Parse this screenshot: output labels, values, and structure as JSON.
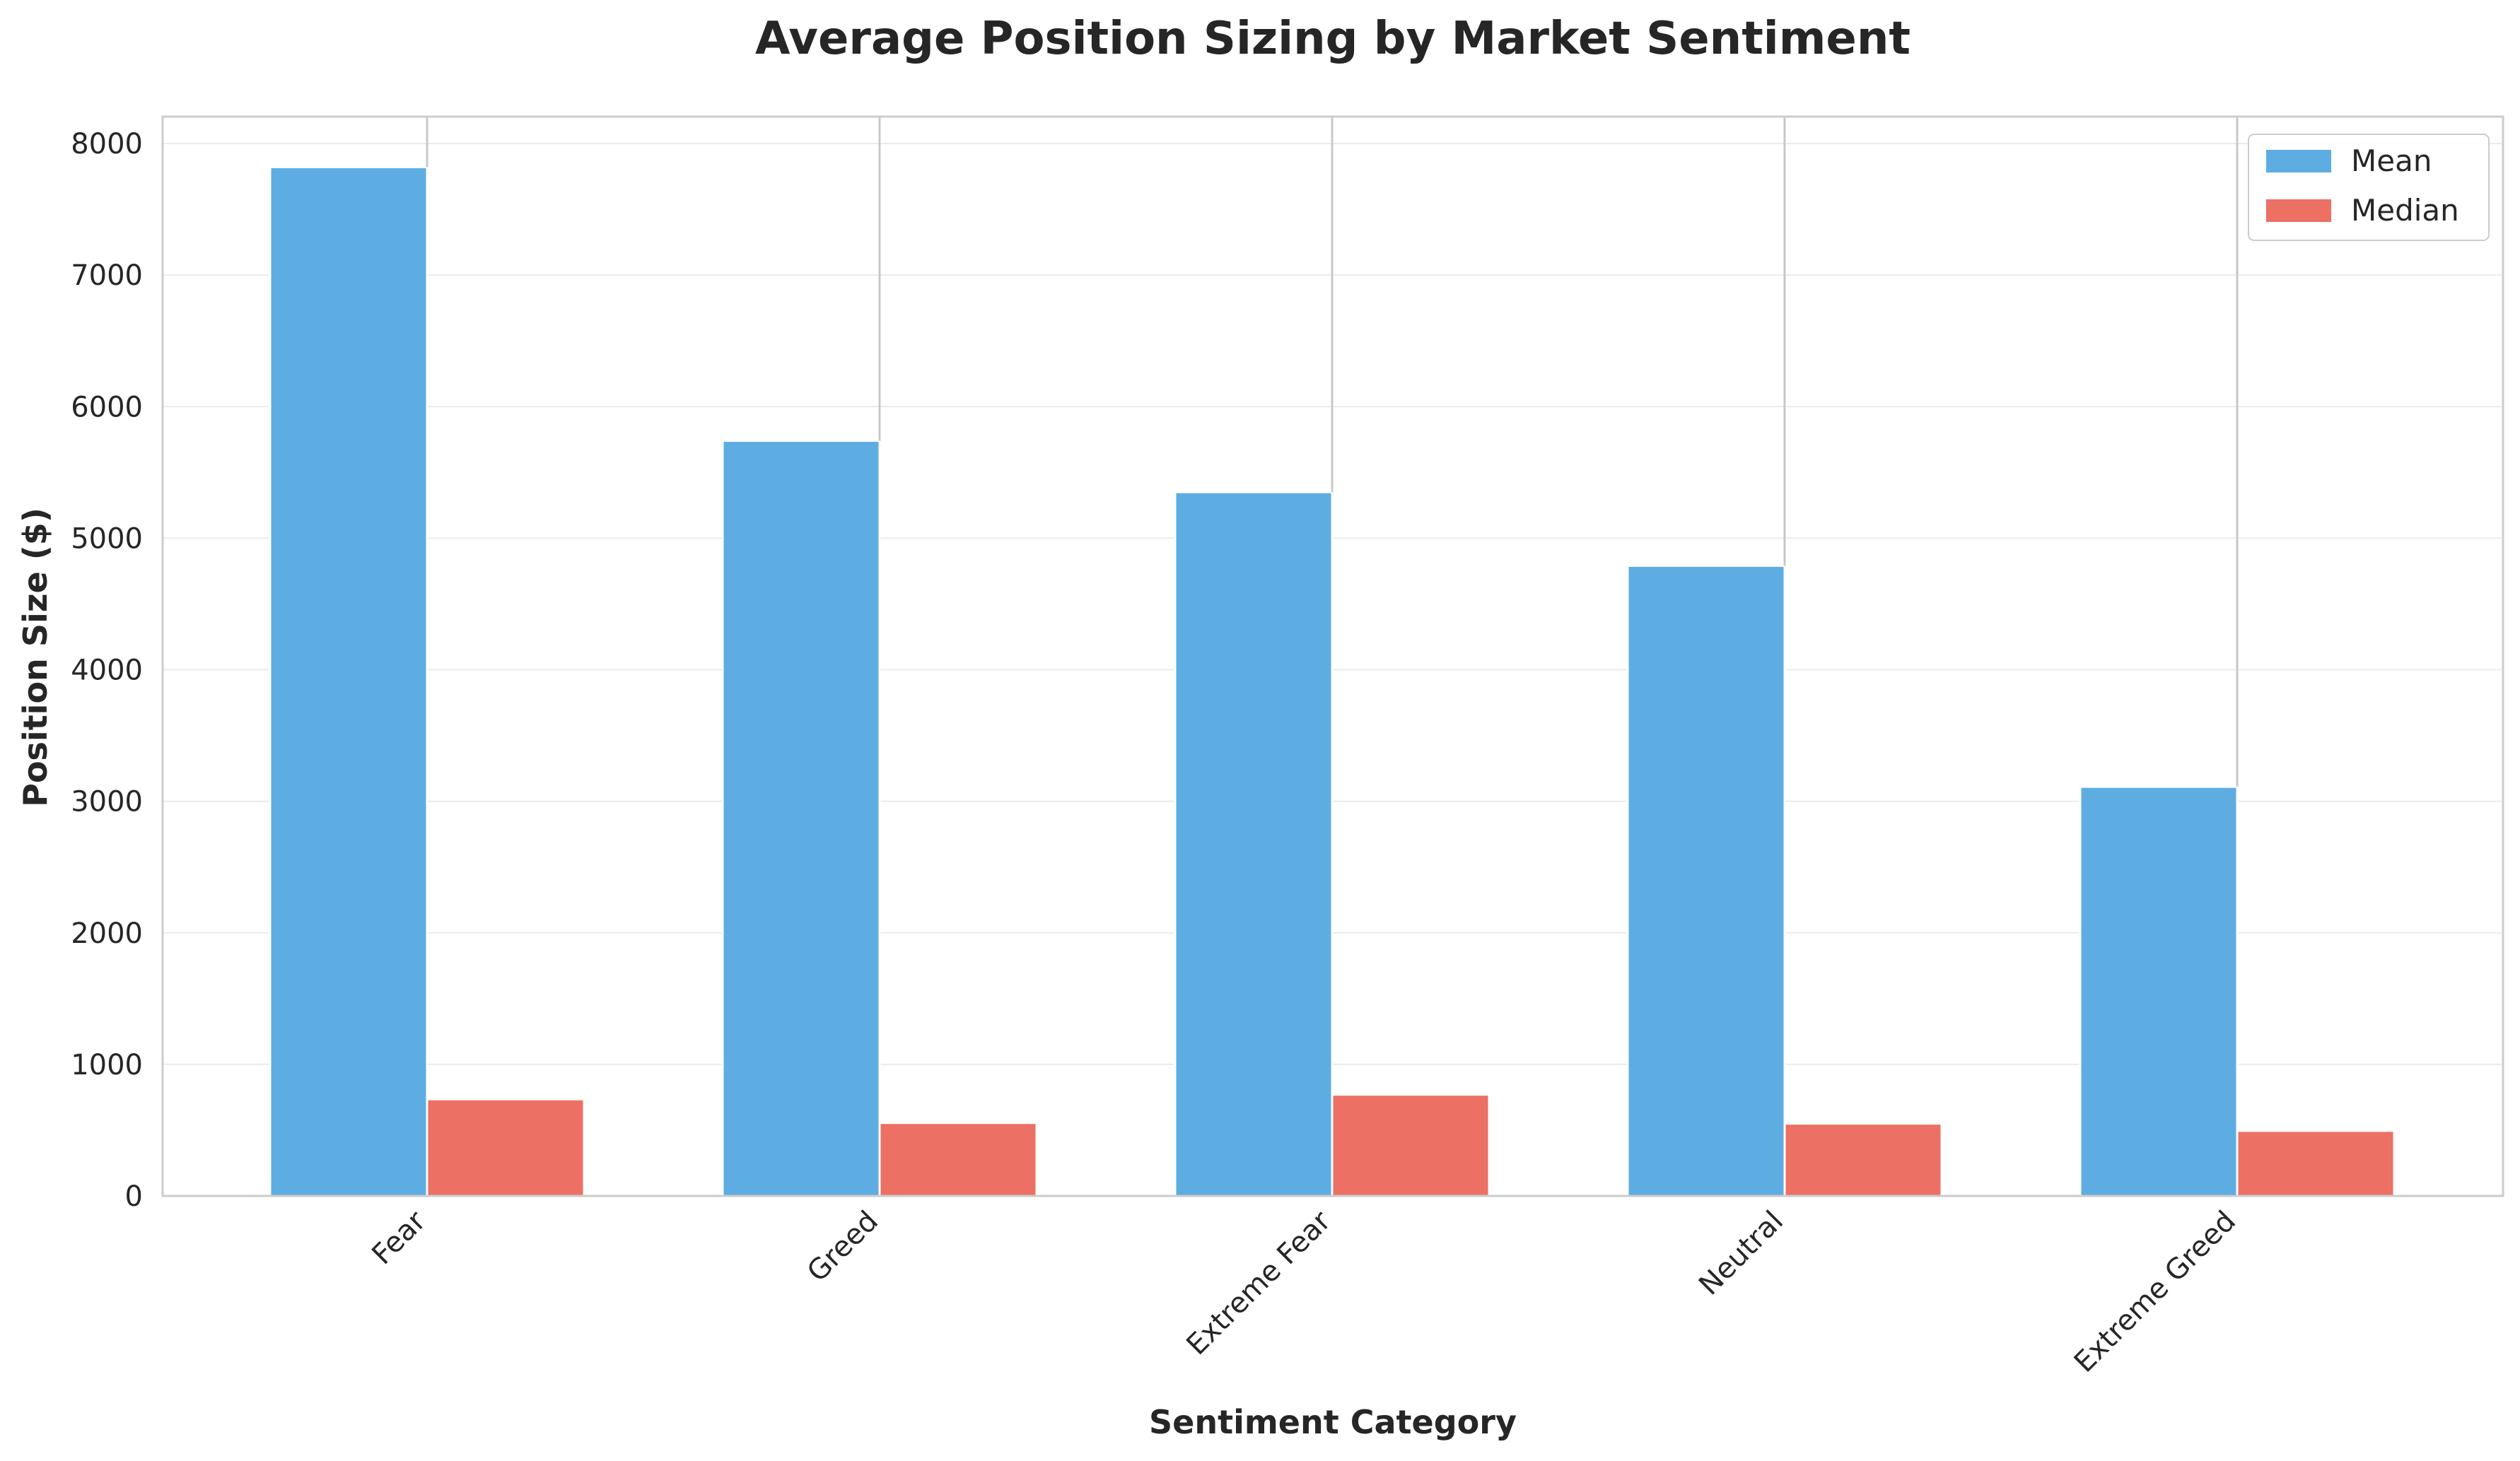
{
  "chart_data": {
    "type": "bar",
    "title": "Average Position Sizing by Market Sentiment",
    "xlabel": "Sentiment Category",
    "ylabel": "Position Size ($)",
    "categories": [
      "Fear",
      "Greed",
      "Extreme Fear",
      "Neutral",
      "Extreme Greed"
    ],
    "series": [
      {
        "name": "Mean",
        "values": [
          7820,
          5740,
          5350,
          4790,
          3110
        ],
        "color": "#5DADE2"
      },
      {
        "name": "Median",
        "values": [
          735,
          555,
          770,
          550,
          495
        ],
        "color": "#EC7063"
      }
    ],
    "error_bar_tops": [
      8200,
      8200,
      8200,
      8200,
      8200
    ],
    "ylim": [
      0,
      8200
    ],
    "yticks": [
      "0",
      "1000",
      "2000",
      "3000",
      "4000",
      "5000",
      "6000",
      "7000",
      "8000"
    ],
    "grid": true,
    "legend_position": "top-right",
    "xtick_rotation": 45
  }
}
